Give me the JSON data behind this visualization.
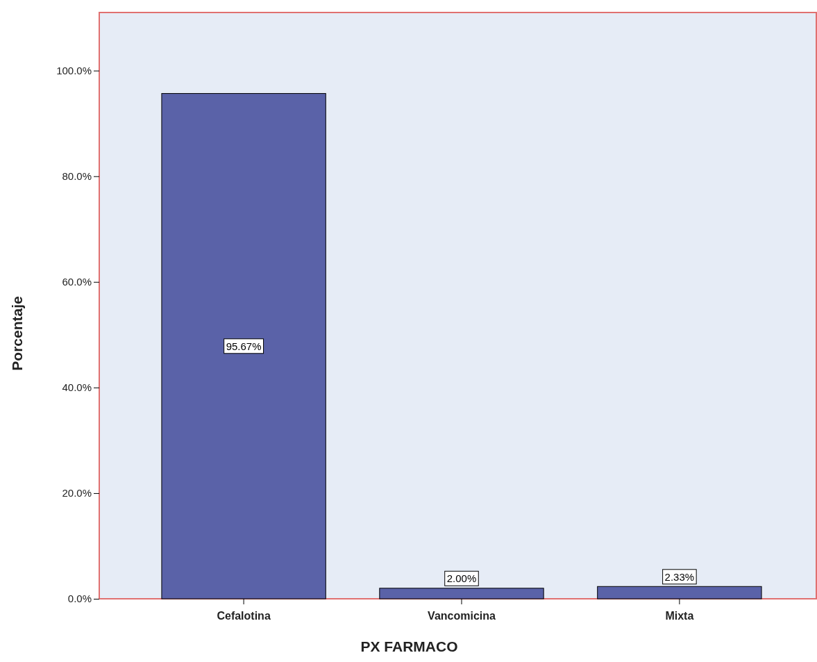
{
  "chart_data": {
    "type": "bar",
    "xlabel": "PX FARMACO",
    "ylabel": "Porcentaje",
    "categories": [
      "Cefalotina",
      "Vancomicina",
      "Mixta"
    ],
    "values": [
      95.67,
      2.0,
      2.33
    ],
    "value_labels": [
      "95.67%",
      "2.00%",
      "2.33%"
    ],
    "color": "#5a62a8",
    "ylim": [
      0,
      111
    ],
    "yticks": [
      {
        "value": 0,
        "label": "0.0%"
      },
      {
        "value": 20,
        "label": "20.0%"
      },
      {
        "value": 40,
        "label": "40.0%"
      },
      {
        "value": 60,
        "label": "60.0%"
      },
      {
        "value": 80,
        "label": "80.0%"
      },
      {
        "value": 100,
        "label": "100.0%"
      }
    ],
    "grid": false
  }
}
